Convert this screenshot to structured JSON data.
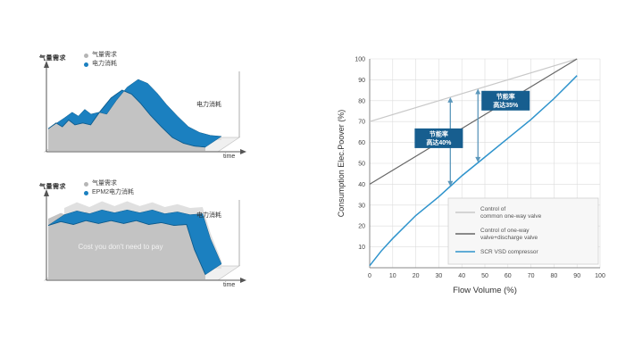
{
  "palette": {
    "blue": "#1b80c0",
    "blue_dark": "#0e5c8e",
    "gray_fill": "#c3c3c3",
    "gray_back": "#e0e0e0",
    "legend_gray_dot": "#b5b5b5"
  },
  "left_section": {
    "top_chart": {
      "y_axis_label": "气量需求",
      "x_axis_label": "time",
      "right_label": "电力消耗",
      "legend": [
        {
          "label": "气量需求",
          "color": "#b5b5b5"
        },
        {
          "label": "电力消耗",
          "color": "#1b80c0"
        }
      ],
      "demand_profile": [
        [
          0,
          22
        ],
        [
          5,
          28
        ],
        [
          9,
          24
        ],
        [
          13,
          31
        ],
        [
          17,
          26
        ],
        [
          22,
          28
        ],
        [
          27,
          26
        ],
        [
          33,
          40
        ],
        [
          40,
          54
        ],
        [
          47,
          62
        ],
        [
          53,
          58
        ],
        [
          59,
          48
        ],
        [
          65,
          36
        ],
        [
          72,
          24
        ],
        [
          79,
          13
        ],
        [
          86,
          7
        ],
        [
          93,
          4
        ],
        [
          100,
          3
        ]
      ],
      "power_profile": [
        [
          0,
          22
        ],
        [
          5,
          28
        ],
        [
          9,
          24
        ],
        [
          13,
          31
        ],
        [
          17,
          26
        ],
        [
          22,
          28
        ],
        [
          27,
          26
        ],
        [
          33,
          40
        ],
        [
          40,
          54
        ],
        [
          47,
          62
        ],
        [
          53,
          58
        ],
        [
          59,
          48
        ],
        [
          65,
          36
        ],
        [
          72,
          24
        ],
        [
          79,
          13
        ],
        [
          86,
          7
        ],
        [
          93,
          4
        ],
        [
          100,
          3
        ]
      ]
    },
    "bottom_chart": {
      "y_axis_label": "气量需求",
      "x_axis_label": "time",
      "right_label": "电力消耗",
      "overlay_text": "Cost you don't need to pay",
      "legend": [
        {
          "label": "气量需求",
          "color": "#b5b5b5"
        },
        {
          "label": "EPM2电力消耗",
          "color": "#1b80c0"
        }
      ],
      "demand_profile": [
        [
          0,
          62
        ],
        [
          8,
          68
        ],
        [
          16,
          63
        ],
        [
          24,
          69
        ],
        [
          32,
          64
        ],
        [
          40,
          69
        ],
        [
          48,
          64
        ],
        [
          56,
          68
        ],
        [
          64,
          63
        ],
        [
          72,
          66
        ],
        [
          80,
          62
        ],
        [
          88,
          63
        ],
        [
          93,
          36
        ],
        [
          100,
          7
        ]
      ],
      "power_profile": [
        [
          0,
          55
        ],
        [
          8,
          59
        ],
        [
          16,
          56
        ],
        [
          24,
          60
        ],
        [
          32,
          57
        ],
        [
          40,
          60
        ],
        [
          48,
          57
        ],
        [
          56,
          60
        ],
        [
          64,
          56
        ],
        [
          72,
          58
        ],
        [
          80,
          55
        ],
        [
          88,
          56
        ],
        [
          93,
          30
        ],
        [
          100,
          4
        ]
      ]
    }
  },
  "chart_data": {
    "type": "line",
    "title": "",
    "xlabel": "Flow Volume (%)",
    "ylabel": "Consumption Elec.Poover (%)",
    "xlim": [
      0,
      100
    ],
    "ylim": [
      0,
      100
    ],
    "grid": true,
    "x_ticks": [
      0,
      10,
      20,
      30,
      40,
      50,
      60,
      70,
      80,
      90,
      100
    ],
    "y_ticks": [
      10,
      20,
      30,
      40,
      50,
      60,
      70,
      80,
      90,
      100
    ],
    "series": [
      {
        "name": "Control of common one-way valve",
        "color": "#c8c8c8",
        "points": [
          [
            0,
            70
          ],
          [
            90,
            100
          ]
        ]
      },
      {
        "name": "Control of one-way valve+discharge valve",
        "color": "#666666",
        "points": [
          [
            0,
            40
          ],
          [
            90,
            100
          ]
        ]
      },
      {
        "name": "SCR VSD compressor",
        "color": "#2e93cc",
        "points": [
          [
            0,
            1
          ],
          [
            5,
            8
          ],
          [
            10,
            14
          ],
          [
            20,
            25
          ],
          [
            30,
            34
          ],
          [
            40,
            44
          ],
          [
            50,
            53
          ],
          [
            60,
            62
          ],
          [
            70,
            71
          ],
          [
            80,
            81
          ],
          [
            90,
            92
          ]
        ]
      }
    ],
    "annotations": [
      {
        "lines": [
          "节能率",
          "高达35%"
        ],
        "x": 59,
        "y": 80
      },
      {
        "lines": [
          "节能率",
          "高达40%"
        ],
        "x": 30,
        "y": 62
      }
    ],
    "arrows": [
      {
        "x": 35,
        "y1": 81.7,
        "y2": 39
      },
      {
        "x": 47,
        "y1": 85.7,
        "y2": 50.5
      }
    ],
    "arrow_color": "#5b97bb",
    "annotation_bg": "#175e8f",
    "legend": {
      "position": "bottom-right",
      "entries": [
        {
          "color": "#c8c8c8",
          "lines": [
            "Control of",
            "common one-way valve"
          ]
        },
        {
          "color": "#666666",
          "lines": [
            "Control of one-way",
            "valve+discharge valve"
          ]
        },
        {
          "color": "#2e93cc",
          "lines": [
            "SCR VSD compressor"
          ]
        }
      ]
    }
  }
}
